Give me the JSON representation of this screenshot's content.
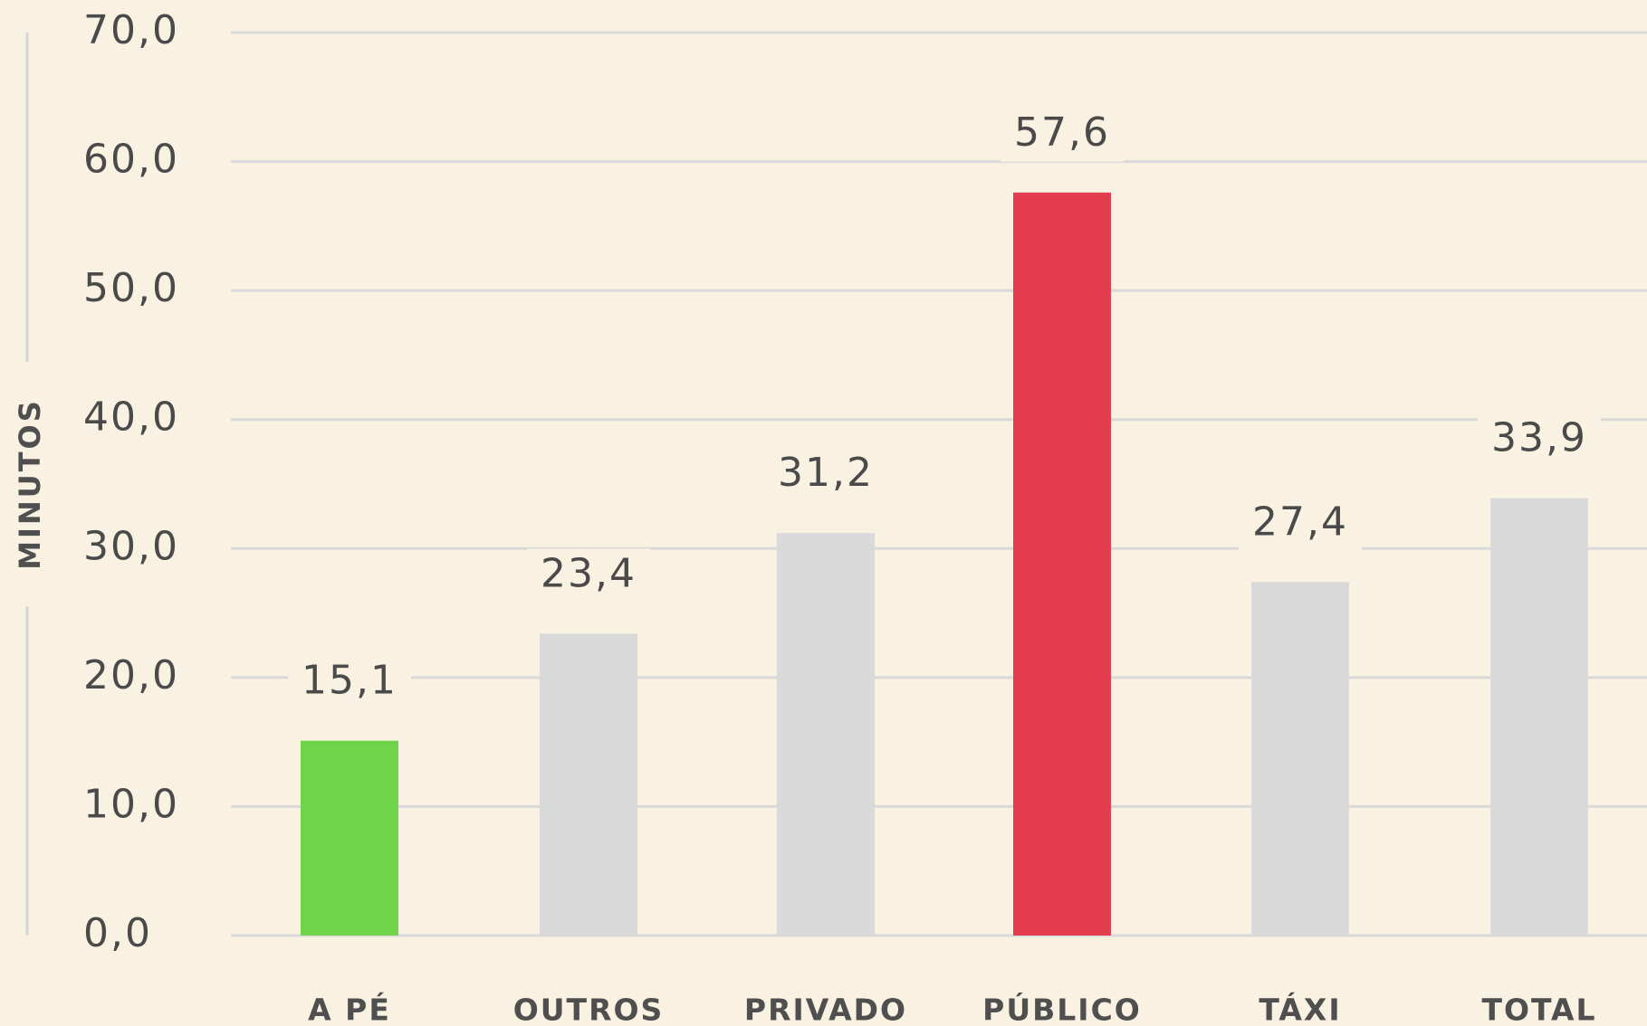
{
  "chart_data": {
    "type": "bar",
    "y_label": "MINUTOS",
    "categories": [
      "A PÉ",
      "OUTROS",
      "PRIVADO",
      "PÚBLICO",
      "TÁXI",
      "TOTAL"
    ],
    "values": [
      15.1,
      23.4,
      31.2,
      57.6,
      27.4,
      33.9
    ],
    "value_labels": [
      "15,1",
      "23,4",
      "31,2",
      "57,6",
      "27,4",
      "33,9"
    ],
    "colors": [
      "#70d44b",
      "#d9d9d9",
      "#d9d9d9",
      "#e43d50",
      "#d9d9d9",
      "#d9d9d9"
    ],
    "ylim": [
      0,
      70
    ],
    "yticks": [
      {
        "value": 0,
        "label": "0,0"
      },
      {
        "value": 10,
        "label": "10,0"
      },
      {
        "value": 20,
        "label": "20,0"
      },
      {
        "value": 30,
        "label": "30,0"
      },
      {
        "value": 40,
        "label": "40,0"
      },
      {
        "value": 50,
        "label": "50,0"
      },
      {
        "value": 60,
        "label": "60,0"
      },
      {
        "value": 70,
        "label": "70,0"
      }
    ],
    "grid": true
  }
}
